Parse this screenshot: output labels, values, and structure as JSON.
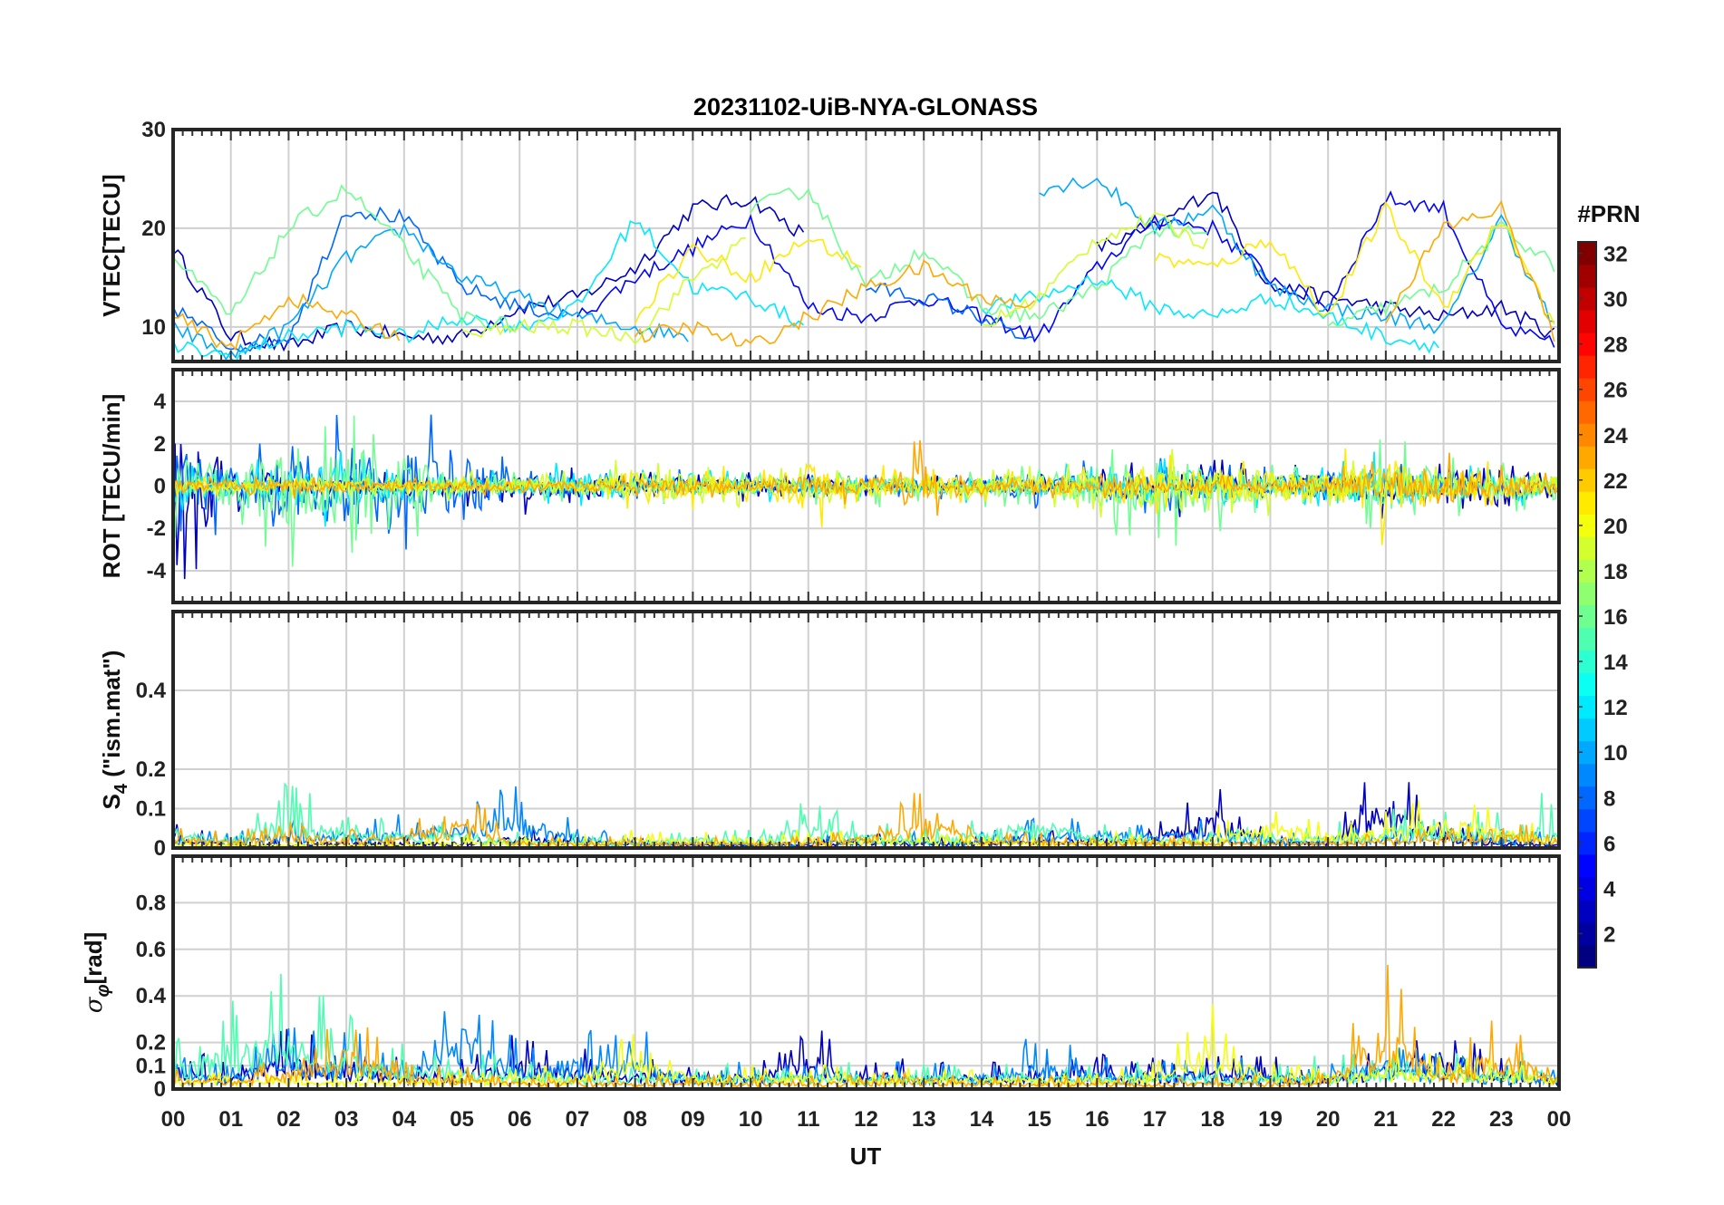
{
  "chart_data": {
    "type": "line",
    "title": "20231102-UiB-NYA-GLONASS",
    "xlabel": "UT",
    "xlim": [
      0,
      24
    ],
    "x_tick_labels": [
      "00",
      "01",
      "02",
      "03",
      "04",
      "05",
      "06",
      "07",
      "08",
      "09",
      "10",
      "11",
      "12",
      "13",
      "14",
      "15",
      "16",
      "17",
      "18",
      "19",
      "20",
      "21",
      "22",
      "23",
      "00"
    ],
    "grid": true,
    "colorbar": {
      "label": "#PRN",
      "range": [
        1,
        32
      ],
      "colormap": "jet",
      "tick_labels": [
        "2",
        "4",
        "6",
        "8",
        "10",
        "12",
        "14",
        "16",
        "18",
        "20",
        "22",
        "24",
        "26",
        "28",
        "30",
        "32"
      ]
    },
    "panels": [
      {
        "name": "vtec",
        "ylabel": "VTEC[TECU]",
        "ylim": [
          6.5,
          30
        ],
        "yticks": [
          10,
          20,
          30
        ],
        "ytick_labels": [
          "10",
          "20",
          "30"
        ],
        "kind": "smooth",
        "series": [
          {
            "prn": 3,
            "hourly": [
              18,
              9,
              8,
              10,
              9,
              9,
              12,
              13,
              16,
              22,
              23,
              19,
              null,
              null,
              null,
              null,
              18,
              20,
              24,
              14,
              13,
              12,
              11,
              12,
              9
            ]
          },
          {
            "prn": 5,
            "hourly": [
              null,
              null,
              null,
              null,
              null,
              null,
              null,
              11,
              15,
              18,
              21,
              12,
              11,
              13,
              11,
              9,
              16,
              21,
              20,
              15,
              12,
              23,
              22,
              10,
              8
            ]
          },
          {
            "prn": 8,
            "hourly": [
              12,
              8,
              9,
              22,
              21,
              14,
              12,
              11,
              null,
              null,
              null,
              null,
              14,
              13,
              11,
              8,
              null,
              null,
              null,
              null,
              null,
              null,
              null,
              null,
              null
            ]
          },
          {
            "prn": 10,
            "hourly": [
              10,
              7,
              10,
              17,
              20,
              15,
              13,
              11,
              10,
              9,
              null,
              null,
              null,
              null,
              null,
              24,
              25,
              20,
              22,
              14,
              12,
              11,
              10,
              21,
              9
            ]
          },
          {
            "prn": 12,
            "hourly": [
              8,
              7,
              9,
              10,
              9,
              11,
              10,
              12,
              21,
              14,
              13,
              10,
              null,
              null,
              12,
              13,
              15,
              12,
              11,
              13,
              11,
              9,
              8,
              null,
              null
            ]
          },
          {
            "prn": 16,
            "hourly": [
              17,
              11,
              20,
              24,
              18,
              11,
              10,
              null,
              null,
              null,
              22,
              24,
              14,
              18,
              12,
              11,
              14,
              20,
              19,
              null,
              10,
              12,
              14,
              20,
              16
            ]
          },
          {
            "prn": 19,
            "hourly": [
              null,
              null,
              null,
              null,
              null,
              9,
              10,
              10,
              9,
              15,
              19,
              null,
              null,
              null,
              10,
              13,
              19,
              21,
              18,
              null,
              null,
              null,
              null,
              null,
              null
            ]
          },
          {
            "prn": 21,
            "hourly": [
              null,
              null,
              null,
              null,
              null,
              null,
              null,
              null,
              11,
              18,
              15,
              19,
              16,
              null,
              null,
              null,
              null,
              17,
              16,
              19,
              11,
              22,
              12,
              21,
              9
            ]
          },
          {
            "prn": 23,
            "hourly": [
              11,
              8,
              13,
              11,
              9,
              null,
              null,
              null,
              9,
              10,
              8,
              11,
              14,
              16,
              13,
              12,
              null,
              null,
              null,
              null,
              null,
              11,
              20,
              22,
              8
            ]
          }
        ]
      },
      {
        "name": "rot",
        "ylabel": "ROT [TECU/min]",
        "ylim": [
          -5.5,
          5.5
        ],
        "yticks": [
          -4,
          -2,
          0,
          2,
          4
        ],
        "ytick_labels": [
          "-4",
          "-2",
          "0",
          "2",
          "4"
        ],
        "kind": "noise",
        "series": [
          {
            "prn": 3,
            "hourly_amplitude": [
              5,
              3,
              1,
              1,
              1,
              1,
              1.5,
              1.2,
              0.8,
              0.8,
              0.8,
              0.6,
              0.6,
              0.6,
              0.6,
              1,
              1.2,
              1.5,
              1.5,
              1,
              1.2,
              1.6,
              1.2,
              2.5,
              1
            ]
          },
          {
            "prn": 8,
            "hourly_amplitude": [
              4,
              2,
              3,
              4,
              4,
              3,
              1,
              1,
              0.8,
              0.8,
              0.6,
              0.6,
              0.6,
              0.6,
              0.8,
              1.2,
              1.5,
              1.5,
              1.4,
              1,
              1.5,
              1.5,
              1,
              0.8,
              0.6
            ]
          },
          {
            "prn": 12,
            "hourly_amplitude": [
              2,
              1,
              2,
              2,
              2,
              1,
              0.8,
              1.5,
              1,
              1,
              0.8,
              0.8,
              0.8,
              0.8,
              0.8,
              1,
              1.2,
              1.5,
              1.5,
              1,
              1.2,
              2,
              1.4,
              1.2,
              1
            ]
          },
          {
            "prn": 16,
            "hourly_amplitude": [
              3,
              2,
              4,
              4,
              3,
              1,
              0.8,
              0.8,
              0.8,
              0.8,
              0.8,
              1,
              1,
              1,
              1,
              1.2,
              2,
              3,
              2.5,
              1.5,
              1,
              2.5,
              1.5,
              1.5,
              1.5
            ]
          },
          {
            "prn": 19,
            "hourly_amplitude": [
              0.5,
              0.5,
              0.5,
              0.5,
              0.5,
              0.8,
              0.8,
              0.8,
              1.5,
              1.2,
              1,
              1.2,
              0.8,
              0.8,
              0.8,
              1,
              1.5,
              2.5,
              2,
              1.5,
              1,
              1.5,
              1,
              1,
              1
            ]
          },
          {
            "prn": 21,
            "hourly_amplitude": [
              0.5,
              0.5,
              0.5,
              0.5,
              0.5,
              0.5,
              0.5,
              0.5,
              1.5,
              1.2,
              1,
              2.5,
              1,
              1,
              0.8,
              0.8,
              1,
              1.5,
              1.5,
              1.5,
              1.5,
              3,
              1.5,
              1.5,
              1
            ]
          },
          {
            "prn": 23,
            "hourly_amplitude": [
              0.6,
              0.5,
              0.6,
              0.6,
              0.6,
              0.5,
              0.5,
              0.5,
              0.5,
              0.6,
              0.6,
              1,
              0.8,
              2.5,
              0.6,
              0.8,
              0.6,
              0.6,
              0.6,
              0.6,
              0.8,
              1.5,
              2,
              1.2,
              0.6
            ]
          }
        ]
      },
      {
        "name": "s4",
        "ylabel": "S4 (\"ism.mat\")",
        "ylabel_main": "S",
        "ylabel_sub": "4",
        "ylabel_rest": "  (\"ism.mat\")",
        "ylim": [
          0,
          0.6
        ],
        "yticks": [
          0,
          0.1,
          0.2,
          0.4
        ],
        "ytick_labels": [
          "0",
          "0.1",
          "0.2",
          "0.4"
        ],
        "kind": "positive",
        "series": [
          {
            "prn": 3,
            "hourly_amplitude": [
              0.07,
              0.02,
              0.02,
              0.03,
              0.03,
              0.03,
              0.06,
              0.04,
              0.03,
              0.02,
              0.02,
              0.02,
              0.04,
              0.03,
              0.03,
              0.05,
              0.05,
              0.06,
              0.2,
              0.03,
              0.04,
              0.27,
              0.08,
              0.03,
              0.02
            ]
          },
          {
            "prn": 9,
            "hourly_amplitude": [
              0.06,
              0.04,
              0.08,
              0.08,
              0.09,
              0.12,
              0.17,
              0.06,
              0.03,
              0.03,
              0.03,
              0.03,
              0.05,
              0.04,
              0.04,
              0.08,
              0.09,
              0.08,
              0.08,
              0.04,
              0.04,
              0.07,
              0.07,
              0.05,
              0.04
            ]
          },
          {
            "prn": 15,
            "hourly_amplitude": [
              0.1,
              0.06,
              0.18,
              0.1,
              0.08,
              0.08,
              0.04,
              0.04,
              0.03,
              0.06,
              0.05,
              0.13,
              0.07,
              0.06,
              0.08,
              0.15,
              0.07,
              0.05,
              0.05,
              0.05,
              0.06,
              0.1,
              0.1,
              0.1,
              0.16
            ]
          },
          {
            "prn": 20,
            "hourly_amplitude": [
              0.02,
              0.02,
              0.02,
              0.02,
              0.02,
              0.03,
              0.03,
              0.03,
              0.05,
              0.05,
              0.05,
              0.05,
              0.05,
              0.05,
              0.03,
              0.03,
              0.04,
              0.04,
              0.06,
              0.13,
              0.08,
              0.1,
              0.15,
              0.1,
              0.05
            ]
          },
          {
            "prn": 23,
            "hourly_amplitude": [
              0.06,
              0.04,
              0.08,
              0.05,
              0.06,
              0.16,
              0.03,
              0.03,
              0.03,
              0.03,
              0.03,
              0.03,
              0.06,
              0.17,
              0.04,
              0.04,
              0.03,
              0.03,
              0.03,
              0.03,
              0.03,
              0.05,
              0.05,
              0.07,
              0.05
            ]
          }
        ]
      },
      {
        "name": "sigma_phi",
        "ylabel": "σφ[rad]",
        "ylabel_main": "σ",
        "ylabel_sub": "φ",
        "ylabel_rest": "[rad]",
        "ylim": [
          0,
          1
        ],
        "yticks": [
          0,
          0.1,
          0.2,
          0.4,
          0.6,
          0.8
        ],
        "ytick_labels": [
          "0",
          "0.1",
          "0.2",
          "0.4",
          "0.6",
          "0.8"
        ],
        "kind": "positive",
        "series": [
          {
            "prn": 3,
            "hourly_amplitude": [
              0.2,
              0.12,
              0.3,
              0.15,
              0.15,
              0.15,
              0.25,
              0.2,
              0.15,
              0.15,
              0.12,
              0.3,
              0.15,
              0.12,
              0.12,
              0.15,
              0.15,
              0.15,
              0.15,
              0.15,
              0.12,
              0.2,
              0.35,
              0.15,
              0.1
            ]
          },
          {
            "prn": 9,
            "hourly_amplitude": [
              0.15,
              0.12,
              0.3,
              0.25,
              0.2,
              0.62,
              0.2,
              0.28,
              0.3,
              0.12,
              0.12,
              0.15,
              0.12,
              0.12,
              0.12,
              0.25,
              0.15,
              0.15,
              0.15,
              0.12,
              0.12,
              0.25,
              0.15,
              0.12,
              0.12
            ]
          },
          {
            "prn": 15,
            "hourly_amplitude": [
              0.2,
              0.4,
              0.52,
              0.35,
              0.2,
              0.2,
              0.12,
              0.12,
              0.12,
              0.12,
              0.12,
              0.12,
              0.12,
              0.12,
              0.12,
              0.12,
              0.12,
              0.12,
              0.12,
              0.12,
              0.15,
              0.2,
              0.18,
              0.18,
              0.15
            ]
          },
          {
            "prn": 20,
            "hourly_amplitude": [
              0.08,
              0.08,
              0.08,
              0.08,
              0.08,
              0.1,
              0.1,
              0.12,
              0.25,
              0.15,
              0.12,
              0.12,
              0.1,
              0.1,
              0.1,
              0.1,
              0.1,
              0.12,
              0.38,
              0.12,
              0.12,
              0.2,
              0.15,
              0.15,
              0.1
            ]
          },
          {
            "prn": 23,
            "hourly_amplitude": [
              0.1,
              0.08,
              0.15,
              0.35,
              0.12,
              0.1,
              0.06,
              0.06,
              0.06,
              0.06,
              0.06,
              0.06,
              0.08,
              0.1,
              0.06,
              0.06,
              0.06,
              0.06,
              0.06,
              0.06,
              0.08,
              0.55,
              0.12,
              0.38,
              0.1
            ]
          }
        ]
      }
    ]
  }
}
